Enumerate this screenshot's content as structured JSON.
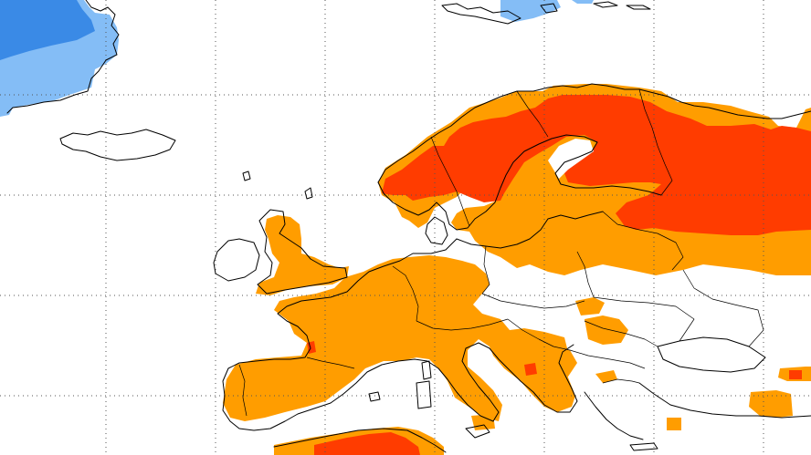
{
  "map": {
    "colors": {
      "background": "#ffffff",
      "above_normal": "#ff9d00",
      "well_above_normal": "#ff3c00",
      "below_normal": "#84bdf6",
      "well_below_normal": "#3a8ae6",
      "coastline": "#000000",
      "gridline": "#555555"
    },
    "gridlines": true
  }
}
